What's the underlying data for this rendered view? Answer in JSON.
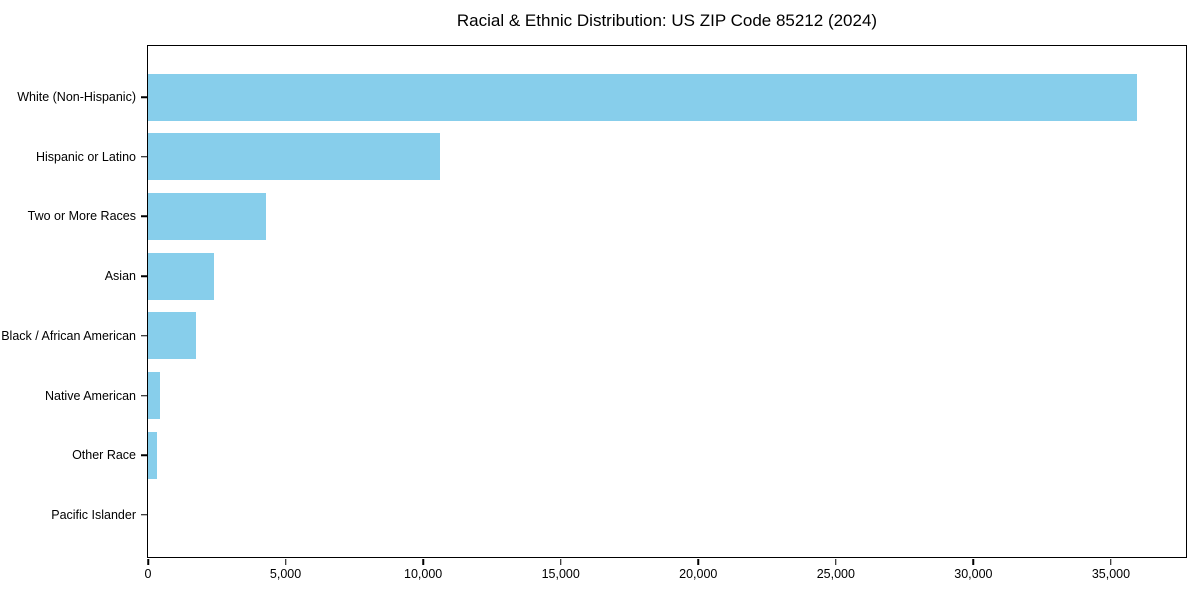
{
  "title": "Racial & Ethnic Distribution: US ZIP Code 85212 (2024)",
  "colors": {
    "bar": "#87CEEB",
    "axis": "#000000",
    "background": "#FFFFFF",
    "text": "#000000"
  },
  "chart_data": {
    "type": "bar",
    "orientation": "horizontal",
    "title": "Racial & Ethnic Distribution: US ZIP Code 85212 (2024)",
    "categories": [
      "White (Non-Hispanic)",
      "Hispanic or Latino",
      "Two or More Races",
      "Asian",
      "Black / African American",
      "Native American",
      "Other Race",
      "Pacific Islander"
    ],
    "values": [
      35960,
      10620,
      4300,
      2390,
      1760,
      420,
      320,
      0
    ],
    "xlabel": "",
    "ylabel": "",
    "xlim": [
      0,
      37800
    ],
    "xticks": [
      0,
      5000,
      10000,
      15000,
      20000,
      25000,
      30000,
      35000
    ],
    "xtick_labels": [
      "0",
      "5,000",
      "10,000",
      "15,000",
      "20,000",
      "25,000",
      "30,000",
      "35,000"
    ],
    "grid": false,
    "legend": null,
    "bar_color": "#87CEEB"
  }
}
